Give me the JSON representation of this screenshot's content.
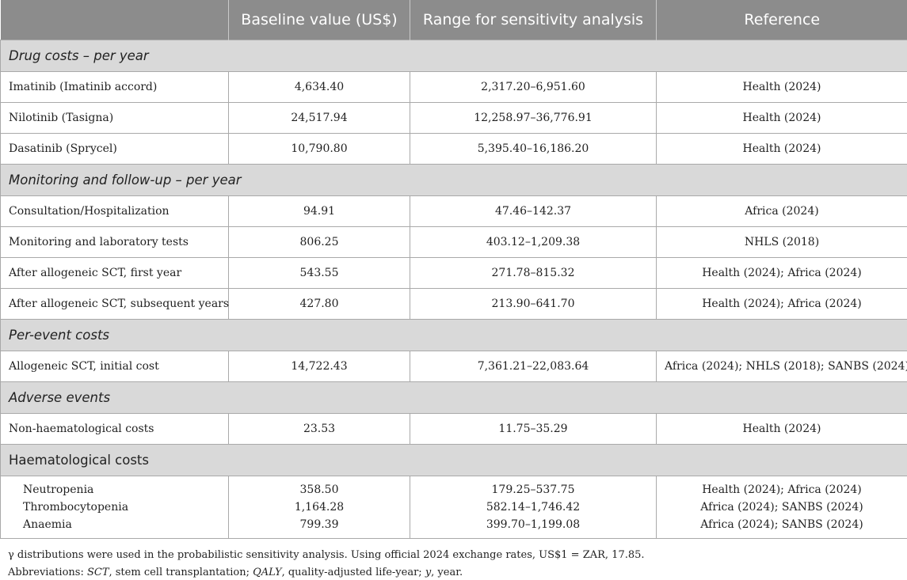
{
  "headers": [
    "",
    "Baseline value (US$)",
    "Range for sensitivity analysis",
    "Reference"
  ],
  "sections": [
    {
      "title": "Drug costs – per year",
      "italic": true,
      "rows": [
        {
          "item": "Imatinib (Imatinib accord)",
          "baseline": "4,634.40",
          "range": "2,317.20–6,951.60",
          "reference": "Health (2024)"
        },
        {
          "item": "Nilotinib (Tasigna)",
          "baseline": "24,517.94",
          "range": "12,258.97–36,776.91",
          "reference": "Health (2024)"
        },
        {
          "item": "Dasatinib (Sprycel)",
          "baseline": "10,790.80",
          "range": "5,395.40–16,186.20",
          "reference": "Health (2024)"
        }
      ]
    },
    {
      "title": "Monitoring and follow-up – per year",
      "italic": true,
      "rows": [
        {
          "item": "Consultation/Hospitalization",
          "baseline": "94.91",
          "range": "47.46–142.37",
          "reference": "Africa (2024)"
        },
        {
          "item": "Monitoring and laboratory tests",
          "baseline": "806.25",
          "range": "403.12–1,209.38",
          "reference": "NHLS (2018)"
        },
        {
          "item": "After allogeneic SCT, first year",
          "baseline": "543.55",
          "range": "271.78–815.32",
          "reference": "Health (2024); Africa (2024)"
        },
        {
          "item": "After allogeneic SCT, subsequent years",
          "baseline": "427.80",
          "range": "213.90–641.70",
          "reference": "Health (2024); Africa (2024)"
        }
      ]
    },
    {
      "title": "Per-event costs",
      "italic": true,
      "rows": [
        {
          "item": "Allogeneic SCT, initial cost",
          "baseline": "14,722.43",
          "range": "7,361.21–22,083.64",
          "reference": "Africa (2024); NHLS (2018); SANBS (2024)"
        }
      ]
    },
    {
      "title": "Adverse events",
      "italic": true,
      "rows": [
        {
          "item": "Non-haematological costs",
          "baseline": "23.53",
          "range": "11.75–35.29",
          "reference": "Health (2024)"
        }
      ]
    }
  ],
  "haematological": {
    "title": "Haematological costs",
    "rows": [
      {
        "item": "Neutropenia",
        "baseline": "358.50",
        "range": "179.25–537.75",
        "reference": "Health (2024); Africa (2024)"
      },
      {
        "item": "Thrombocytopenia",
        "baseline": "1,164.28",
        "range": "582.14–1,746.42",
        "reference": "Africa (2024); SANBS (2024)"
      },
      {
        "item": "Anaemia",
        "baseline": "799.39",
        "range": "399.70–1,199.08",
        "reference": "Africa (2024); SANBS (2024)"
      }
    ]
  },
  "footnotes": [
    "γ distributions were used in the probabilistic sensitivity analysis. Using official 2024 exchange rates, US$1 = ZAR, 17.85.",
    "Abbreviations: SCT, stem cell transplantation; QALY, quality-adjusted life-year; y, year."
  ]
}
